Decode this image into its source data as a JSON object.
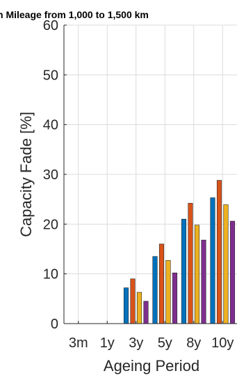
{
  "chart_data": {
    "type": "bar",
    "title": "h Mileage from 1,000 to 1,500 km",
    "xlabel": "Ageing Period",
    "ylabel": "Capacity Fade [%]",
    "ylim": [
      0,
      60
    ],
    "yticks": [
      "0",
      "10",
      "20",
      "30",
      "40",
      "50",
      "60"
    ],
    "categories": [
      "3m",
      "1y",
      "3y",
      "5y",
      "8y",
      "10y"
    ],
    "grid": true,
    "series": [
      {
        "color": "#0072BD",
        "values": [
          0,
          0,
          7.2,
          13.5,
          21.0,
          25.3
        ]
      },
      {
        "color": "#D95319",
        "values": [
          0,
          0,
          9.0,
          16.0,
          24.2,
          28.8
        ]
      },
      {
        "color": "#EDB120",
        "values": [
          0,
          0,
          6.3,
          12.7,
          19.8,
          23.9
        ]
      },
      {
        "color": "#7E2F8E",
        "values": [
          0,
          0,
          4.5,
          10.2,
          16.8,
          20.6
        ]
      }
    ]
  }
}
